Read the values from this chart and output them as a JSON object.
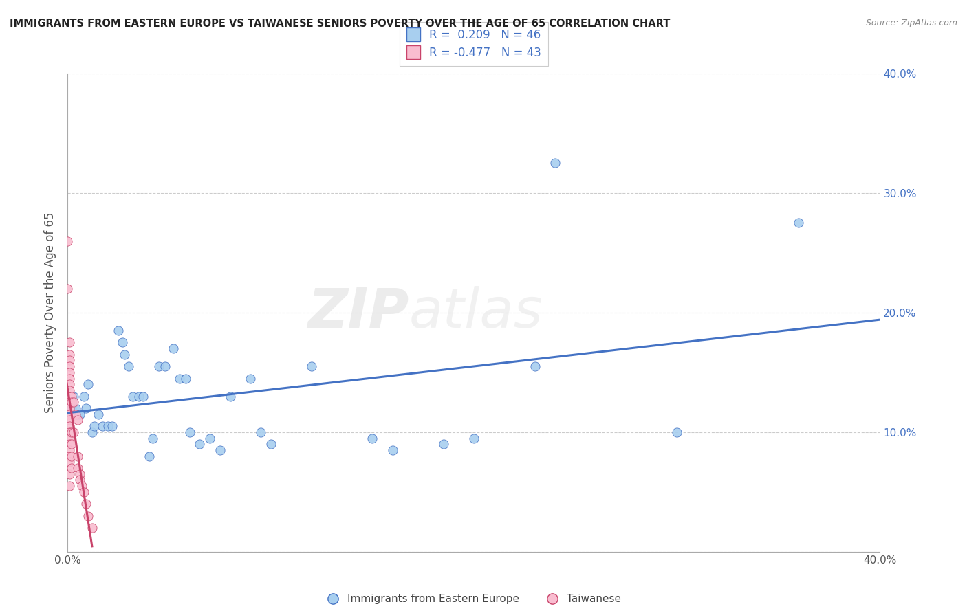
{
  "title": "IMMIGRANTS FROM EASTERN EUROPE VS TAIWANESE SENIORS POVERTY OVER THE AGE OF 65 CORRELATION CHART",
  "source": "Source: ZipAtlas.com",
  "ylabel": "Seniors Poverty Over the Age of 65",
  "xlim": [
    0.0,
    0.4
  ],
  "ylim": [
    0.0,
    0.4
  ],
  "blue_R": 0.209,
  "blue_N": 46,
  "pink_R": -0.477,
  "pink_N": 43,
  "blue_color": "#A8CFEF",
  "pink_color": "#F9BDD0",
  "blue_line_color": "#4472C4",
  "pink_line_color": "#C9436A",
  "blue_edge_color": "#4472C4",
  "pink_edge_color": "#C9436A",
  "legend1_label": "Immigrants from Eastern Europe",
  "legend2_label": "Taiwanese",
  "watermark_zip": "ZIP",
  "watermark_atlas": "atlas",
  "blue_points": [
    [
      0.001,
      0.13
    ],
    [
      0.002,
      0.12
    ],
    [
      0.003,
      0.13
    ],
    [
      0.004,
      0.12
    ],
    [
      0.005,
      0.115
    ],
    [
      0.006,
      0.115
    ],
    [
      0.008,
      0.13
    ],
    [
      0.009,
      0.12
    ],
    [
      0.01,
      0.14
    ],
    [
      0.012,
      0.1
    ],
    [
      0.013,
      0.105
    ],
    [
      0.015,
      0.115
    ],
    [
      0.017,
      0.105
    ],
    [
      0.02,
      0.105
    ],
    [
      0.022,
      0.105
    ],
    [
      0.025,
      0.185
    ],
    [
      0.027,
      0.175
    ],
    [
      0.028,
      0.165
    ],
    [
      0.03,
      0.155
    ],
    [
      0.032,
      0.13
    ],
    [
      0.035,
      0.13
    ],
    [
      0.037,
      0.13
    ],
    [
      0.04,
      0.08
    ],
    [
      0.042,
      0.095
    ],
    [
      0.045,
      0.155
    ],
    [
      0.048,
      0.155
    ],
    [
      0.052,
      0.17
    ],
    [
      0.055,
      0.145
    ],
    [
      0.058,
      0.145
    ],
    [
      0.06,
      0.1
    ],
    [
      0.065,
      0.09
    ],
    [
      0.07,
      0.095
    ],
    [
      0.075,
      0.085
    ],
    [
      0.08,
      0.13
    ],
    [
      0.09,
      0.145
    ],
    [
      0.095,
      0.1
    ],
    [
      0.1,
      0.09
    ],
    [
      0.12,
      0.155
    ],
    [
      0.15,
      0.095
    ],
    [
      0.16,
      0.085
    ],
    [
      0.185,
      0.09
    ],
    [
      0.2,
      0.095
    ],
    [
      0.23,
      0.155
    ],
    [
      0.24,
      0.325
    ],
    [
      0.3,
      0.1
    ],
    [
      0.36,
      0.275
    ]
  ],
  "pink_points": [
    [
      0.0,
      0.26
    ],
    [
      0.0,
      0.22
    ],
    [
      0.001,
      0.175
    ],
    [
      0.001,
      0.165
    ],
    [
      0.001,
      0.16
    ],
    [
      0.001,
      0.155
    ],
    [
      0.001,
      0.15
    ],
    [
      0.001,
      0.145
    ],
    [
      0.001,
      0.14
    ],
    [
      0.001,
      0.135
    ],
    [
      0.001,
      0.13
    ],
    [
      0.001,
      0.125
    ],
    [
      0.001,
      0.12
    ],
    [
      0.001,
      0.115
    ],
    [
      0.001,
      0.11
    ],
    [
      0.001,
      0.105
    ],
    [
      0.001,
      0.1
    ],
    [
      0.001,
      0.095
    ],
    [
      0.001,
      0.09
    ],
    [
      0.001,
      0.085
    ],
    [
      0.001,
      0.08
    ],
    [
      0.001,
      0.075
    ],
    [
      0.001,
      0.065
    ],
    [
      0.001,
      0.055
    ],
    [
      0.002,
      0.13
    ],
    [
      0.002,
      0.125
    ],
    [
      0.002,
      0.1
    ],
    [
      0.002,
      0.09
    ],
    [
      0.002,
      0.08
    ],
    [
      0.002,
      0.07
    ],
    [
      0.003,
      0.125
    ],
    [
      0.003,
      0.1
    ],
    [
      0.004,
      0.115
    ],
    [
      0.005,
      0.11
    ],
    [
      0.005,
      0.08
    ],
    [
      0.005,
      0.07
    ],
    [
      0.006,
      0.065
    ],
    [
      0.006,
      0.06
    ],
    [
      0.007,
      0.055
    ],
    [
      0.008,
      0.05
    ],
    [
      0.009,
      0.04
    ],
    [
      0.01,
      0.03
    ],
    [
      0.012,
      0.02
    ]
  ],
  "pink_line_x": [
    -0.002,
    0.014
  ],
  "grid_color": "#CCCCCC",
  "tick_label_color": "#4472C4",
  "axis_label_color": "#555555",
  "title_color": "#222222",
  "source_color": "#888888"
}
